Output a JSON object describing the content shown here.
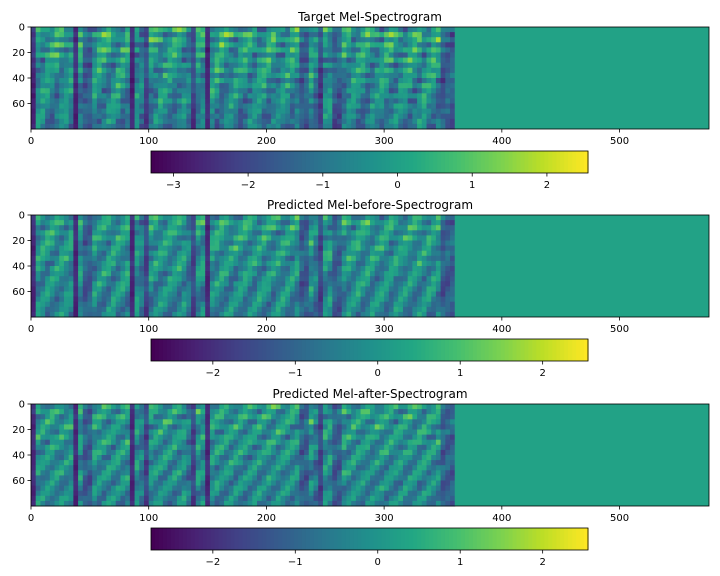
{
  "figure": {
    "panels": [
      {
        "title": "Target Mel-Spectrogram",
        "colorbar": {
          "min": -3.3,
          "max": 2.55,
          "ticks": [
            -3,
            -2,
            -1,
            0,
            1,
            2
          ],
          "tick_labels": [
            "−3",
            "−2",
            "−1",
            "0",
            "1",
            "2"
          ]
        }
      },
      {
        "title": "Predicted Mel-before-Spectrogram",
        "colorbar": {
          "min": -2.75,
          "max": 2.55,
          "ticks": [
            -2,
            -1,
            0,
            1,
            2
          ],
          "tick_labels": [
            "−2",
            "−1",
            "0",
            "1",
            "2"
          ]
        }
      },
      {
        "title": "Predicted Mel-after-Spectrogram",
        "colorbar": {
          "min": -2.75,
          "max": 2.55,
          "ticks": [
            -2,
            -1,
            0,
            1,
            2
          ],
          "tick_labels": [
            "−2",
            "−1",
            "0",
            "1",
            "2"
          ]
        }
      }
    ]
  },
  "chart_data": [
    {
      "type": "heatmap",
      "title": "Target Mel-Spectrogram",
      "x_range": [
        0,
        576
      ],
      "y_range": [
        0,
        80
      ],
      "x_ticks": [
        0,
        100,
        200,
        300,
        400,
        500
      ],
      "y_ticks": [
        0,
        20,
        40,
        60
      ],
      "voiced_frames": 360,
      "padding_value": 0.3,
      "colormap": "viridis",
      "colorbar_range": [
        -3.3,
        2.55
      ]
    },
    {
      "type": "heatmap",
      "title": "Predicted Mel-before-Spectrogram",
      "x_range": [
        0,
        576
      ],
      "y_range": [
        0,
        80
      ],
      "x_ticks": [
        0,
        100,
        200,
        300,
        400,
        500
      ],
      "y_ticks": [
        0,
        20,
        40,
        60
      ],
      "voiced_frames": 360,
      "padding_value": 0.3,
      "colormap": "viridis",
      "colorbar_range": [
        -2.75,
        2.55
      ]
    },
    {
      "type": "heatmap",
      "title": "Predicted Mel-after-Spectrogram",
      "x_range": [
        0,
        576
      ],
      "y_range": [
        0,
        80
      ],
      "x_ticks": [
        0,
        100,
        200,
        300,
        400,
        500
      ],
      "y_ticks": [
        0,
        20,
        40,
        60
      ],
      "voiced_frames": 360,
      "padding_value": 0.3,
      "colormap": "viridis",
      "colorbar_range": [
        -2.75,
        2.55
      ]
    }
  ]
}
